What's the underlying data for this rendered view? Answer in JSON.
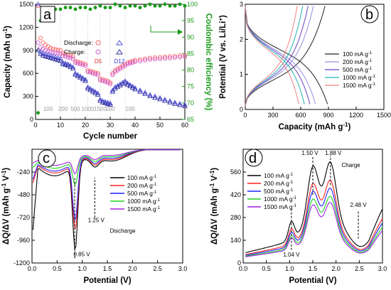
{
  "chart_data": [
    {
      "panel": "a",
      "type": "scatter",
      "xlabel": "Cycle number",
      "ylabel": "Capacity (mAh g-1)",
      "y2label": "Coulombic efficiency (%)",
      "xlim": [
        0,
        60
      ],
      "ylim": [
        0,
        1500
      ],
      "y2lim": [
        65,
        100
      ],
      "xticks": [
        0,
        10,
        20,
        30,
        40,
        50,
        60
      ],
      "yticks": [
        0,
        300,
        600,
        900,
        1200,
        1500
      ],
      "y2ticks": [
        65,
        70,
        75,
        80,
        85,
        90,
        95,
        100
      ],
      "legend": {
        "discharge": "Discharge:",
        "charge": "Charge:",
        "d5": "D5",
        "d12": "D12"
      },
      "rate_labels": [
        {
          "text": "100",
          "x": 5
        },
        {
          "text": "200",
          "x": 11
        },
        {
          "text": "500",
          "x": 16
        },
        {
          "text": "1000",
          "x": 21
        },
        {
          "text": "1500",
          "x": 26
        },
        {
          "text": "500",
          "x": 30
        },
        {
          "text": "100",
          "x": 38
        }
      ],
      "series": [
        {
          "name": "D5 discharge",
          "color": "#ff6060",
          "marker": "circle",
          "x": [
            1,
            2,
            3,
            4,
            5,
            6,
            7,
            8,
            9,
            10,
            11,
            12,
            13,
            14,
            15,
            16,
            17,
            18,
            19,
            20,
            21,
            22,
            23,
            24,
            25,
            26,
            27,
            28,
            29,
            30,
            31,
            32,
            33,
            34,
            35,
            36,
            37,
            38,
            39,
            40,
            42,
            44,
            46,
            48,
            50,
            52,
            54,
            56,
            58,
            60
          ],
          "y": [
            1480,
            1060,
            1000,
            970,
            950,
            930,
            920,
            910,
            905,
            900,
            860,
            850,
            840,
            830,
            820,
            760,
            750,
            740,
            730,
            720,
            640,
            630,
            620,
            610,
            600,
            530,
            520,
            510,
            500,
            480,
            600,
            640,
            660,
            680,
            700,
            720,
            740,
            750,
            760,
            770,
            780,
            790,
            800,
            805,
            810,
            815,
            820,
            825,
            830,
            835
          ]
        },
        {
          "name": "D5 charge",
          "color": "#d060d0",
          "marker": "circle",
          "x": [
            1,
            2,
            3,
            4,
            5,
            6,
            7,
            8,
            9,
            10,
            11,
            12,
            13,
            14,
            15,
            16,
            17,
            18,
            19,
            20,
            21,
            22,
            23,
            24,
            25,
            26,
            27,
            28,
            29,
            30,
            31,
            32,
            33,
            34,
            35,
            36,
            37,
            38,
            39,
            40,
            42,
            44,
            46,
            48,
            50,
            52,
            54,
            56,
            58,
            60
          ],
          "y": [
            1000,
            940,
            920,
            900,
            890,
            880,
            870,
            865,
            860,
            855,
            830,
            820,
            810,
            800,
            790,
            740,
            730,
            720,
            710,
            700,
            620,
            610,
            600,
            590,
            580,
            510,
            500,
            490,
            480,
            460,
            580,
            620,
            640,
            660,
            680,
            700,
            720,
            730,
            740,
            750,
            760,
            770,
            780,
            785,
            790,
            795,
            800,
            805,
            810,
            815
          ]
        },
        {
          "name": "D12 discharge",
          "color": "#5050e0",
          "marker": "triangle",
          "x": [
            1,
            2,
            3,
            4,
            5,
            6,
            7,
            8,
            9,
            10,
            11,
            12,
            13,
            14,
            15,
            16,
            17,
            18,
            19,
            20,
            21,
            22,
            23,
            24,
            25,
            26,
            27,
            28,
            29,
            30,
            31,
            32,
            33,
            34,
            35,
            36,
            37,
            38,
            39,
            40,
            42,
            44,
            46,
            48,
            50,
            52,
            54,
            56,
            58,
            60
          ],
          "y": [
            1500,
            880,
            860,
            850,
            840,
            830,
            820,
            810,
            800,
            790,
            740,
            730,
            720,
            700,
            680,
            600,
            580,
            560,
            540,
            520,
            420,
            400,
            380,
            360,
            340,
            260,
            240,
            230,
            220,
            210,
            380,
            420,
            440,
            460,
            480,
            500,
            470,
            450,
            430,
            410,
            380,
            350,
            320,
            300,
            280,
            260,
            240,
            220,
            205,
            190
          ]
        },
        {
          "name": "D12 charge",
          "color": "#3030a0",
          "marker": "triangle",
          "x": [
            1,
            2,
            3,
            4,
            5,
            6,
            7,
            8,
            9,
            10,
            11,
            12,
            13,
            14,
            15,
            16,
            17,
            18,
            19,
            20,
            21,
            22,
            23,
            24,
            25,
            26,
            27,
            28,
            29,
            30,
            31,
            32,
            33,
            34,
            35,
            36,
            37,
            38,
            39,
            40,
            42,
            44,
            46,
            48,
            50,
            52,
            54,
            56,
            58,
            60
          ],
          "y": [
            900,
            850,
            830,
            820,
            810,
            800,
            790,
            780,
            770,
            760,
            720,
            710,
            700,
            680,
            660,
            580,
            560,
            540,
            520,
            500,
            400,
            380,
            360,
            340,
            320,
            240,
            220,
            210,
            200,
            190,
            360,
            400,
            420,
            440,
            460,
            480,
            450,
            430,
            410,
            390,
            360,
            330,
            300,
            280,
            260,
            240,
            220,
            200,
            185,
            170
          ]
        },
        {
          "name": "Coulombic efficiency",
          "color": "#1a9a1a",
          "marker": "circle",
          "axis": "right",
          "x": [
            1,
            2,
            3,
            4,
            5,
            6,
            8,
            10,
            12,
            14,
            16,
            18,
            20,
            22,
            24,
            26,
            28,
            30,
            32,
            34,
            36,
            38,
            40,
            42,
            44,
            46,
            48,
            50,
            52,
            54,
            56,
            58,
            60
          ],
          "y": [
            67,
            95,
            97,
            97.5,
            98,
            98,
            98.5,
            98.5,
            99,
            99,
            98.5,
            99,
            99,
            98.5,
            99,
            99.5,
            99,
            99,
            100,
            99.5,
            99,
            99.5,
            99.5,
            99,
            99.5,
            100,
            99.5,
            99.5,
            100,
            99.5,
            99.5,
            100,
            99.5
          ]
        }
      ]
    },
    {
      "panel": "b",
      "type": "line",
      "xlabel": "Capacity (mAh g-1)",
      "ylabel": "Potential (V vs. Li/Li+)",
      "xlim": [
        0,
        1500
      ],
      "ylim": [
        0,
        3
      ],
      "xticks": [
        0,
        300,
        600,
        900,
        1200,
        1500
      ],
      "yticks": [
        0,
        1,
        2,
        3
      ],
      "series": [
        {
          "name": "100 mA g-1",
          "color": "#222222",
          "qmax": 890
        },
        {
          "name": "200 mA g-1",
          "color": "#9090e0",
          "qmax": 760
        },
        {
          "name": "500 mA g-1",
          "color": "#6a3fc0",
          "qmax": 700
        },
        {
          "name": "1000 mA g-1",
          "color": "#20b0b0",
          "qmax": 640
        },
        {
          "name": "1500 mA g-1",
          "color": "#f08080",
          "qmax": 580
        }
      ]
    },
    {
      "panel": "c",
      "type": "line",
      "xlabel": "Potential (V)",
      "ylabel": "ΔQ/ΔV (mAh g-1 V-1)",
      "xlim": [
        0,
        3.0
      ],
      "ylim": [
        -1200,
        0
      ],
      "xticks": [
        0.0,
        0.5,
        1.0,
        1.5,
        2.0,
        2.5,
        3.0
      ],
      "yticks": [
        -1200,
        -960,
        -720,
        -480,
        -240
      ],
      "annotations": [
        {
          "text": "0.85 V",
          "x": 0.85
        },
        {
          "text": "1.25 V",
          "x": 1.25
        },
        {
          "text": "Discharge"
        }
      ],
      "series": [
        {
          "name": "100 mA g-1",
          "color": "#000000",
          "peak": -1100,
          "base": -280
        },
        {
          "name": "200 mA g-1",
          "color": "#ff2020",
          "peak": -880,
          "base": -250
        },
        {
          "name": "500 mA g-1",
          "color": "#2020ff",
          "peak": -780,
          "base": -230
        },
        {
          "name": "1000 mA g-1",
          "color": "#20d020",
          "peak": -400,
          "base": -200
        },
        {
          "name": "1500 mA g-1",
          "color": "#a020e0",
          "peak": -280,
          "base": -170
        }
      ]
    },
    {
      "panel": "d",
      "type": "line",
      "xlabel": "Potential (V)",
      "ylabel": "ΔQ/ΔV (mAh g-1 V-1)",
      "xlim": [
        0,
        3.0
      ],
      "ylim": [
        0,
        700
      ],
      "xticks": [
        0.0,
        0.5,
        1.0,
        1.5,
        2.0,
        2.5,
        3.0
      ],
      "yticks": [
        0,
        140,
        280,
        420,
        560
      ],
      "annotations": [
        {
          "text": "1.04 V",
          "x": 1.04
        },
        {
          "text": "1.50 V",
          "x": 1.5
        },
        {
          "text": "1.88 V",
          "x": 1.88
        },
        {
          "text": "2.48 V",
          "x": 2.48
        },
        {
          "text": "Charge"
        }
      ],
      "series": [
        {
          "name": "100 mA g-1",
          "color": "#000000",
          "scale": 1.0
        },
        {
          "name": "200 mA g-1",
          "color": "#ff2020",
          "scale": 0.82
        },
        {
          "name": "500 mA g-1",
          "color": "#2020ff",
          "scale": 0.74
        },
        {
          "name": "1000 mA g-1",
          "color": "#20d020",
          "scale": 0.66
        },
        {
          "name": "1500 mA g-1",
          "color": "#a020e0",
          "scale": 0.6
        }
      ]
    }
  ]
}
